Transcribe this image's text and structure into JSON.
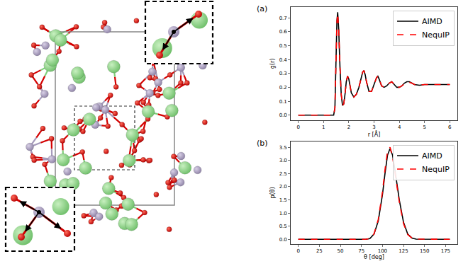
{
  "chart_data": [
    {
      "type": "line",
      "title": "(a)",
      "x_label": "r [Å]",
      "y_label": "g(r)",
      "x": [
        0,
        1.3,
        1.4,
        1.45,
        1.5,
        1.53,
        1.56,
        1.6,
        1.65,
        1.7,
        1.75,
        1.8,
        1.85,
        1.9,
        1.95,
        2.0,
        2.05,
        2.1,
        2.2,
        2.3,
        2.4,
        2.5,
        2.55,
        2.6,
        2.65,
        2.7,
        2.8,
        2.9,
        3.0,
        3.1,
        3.15,
        3.2,
        3.3,
        3.4,
        3.5,
        3.6,
        3.7,
        3.8,
        3.9,
        4.0,
        4.1,
        4.2,
        4.3,
        4.4,
        4.5,
        4.6,
        4.8,
        5.0,
        5.2,
        5.5,
        6.0
      ],
      "series": [
        {
          "name": "AIMD",
          "color": "#000000",
          "line_style": "solid",
          "values": [
            0,
            0,
            0.0,
            0.05,
            0.42,
            0.68,
            0.74,
            0.62,
            0.35,
            0.15,
            0.07,
            0.08,
            0.15,
            0.24,
            0.28,
            0.26,
            0.21,
            0.16,
            0.13,
            0.15,
            0.2,
            0.28,
            0.31,
            0.32,
            0.29,
            0.24,
            0.17,
            0.17,
            0.22,
            0.27,
            0.28,
            0.26,
            0.21,
            0.2,
            0.21,
            0.23,
            0.24,
            0.22,
            0.2,
            0.2,
            0.21,
            0.23,
            0.24,
            0.24,
            0.23,
            0.22,
            0.215,
            0.22,
            0.22,
            0.22,
            0.22
          ]
        },
        {
          "name": "NequIP",
          "color": "#ff0000",
          "line_style": "dashed",
          "values": [
            0,
            0,
            0.0,
            0.05,
            0.41,
            0.67,
            0.73,
            0.62,
            0.35,
            0.15,
            0.07,
            0.08,
            0.15,
            0.24,
            0.28,
            0.26,
            0.21,
            0.16,
            0.13,
            0.15,
            0.2,
            0.28,
            0.31,
            0.32,
            0.29,
            0.24,
            0.17,
            0.17,
            0.22,
            0.27,
            0.28,
            0.26,
            0.21,
            0.2,
            0.21,
            0.23,
            0.24,
            0.22,
            0.2,
            0.2,
            0.21,
            0.225,
            0.235,
            0.235,
            0.23,
            0.22,
            0.215,
            0.22,
            0.22,
            0.22,
            0.22
          ]
        }
      ],
      "xlim": [
        -0.3,
        6.3
      ],
      "xticks": [
        0,
        1,
        2,
        3,
        4,
        5,
        6
      ],
      "ylim": [
        -0.037,
        0.777
      ],
      "yticks": [
        {
          "value": 0,
          "label": "0.0"
        },
        0.1,
        0.2,
        0.3,
        0.4,
        0.5,
        0.6,
        0.7
      ],
      "legend": "upper right",
      "grid": false
    },
    {
      "type": "line",
      "title": "(b)",
      "x_label": "θ [deg]",
      "y_label": "p(θ)",
      "x": [
        0,
        80,
        85,
        90,
        95,
        100,
        103,
        106,
        109,
        112,
        115,
        120,
        125,
        130,
        135,
        140,
        180
      ],
      "series": [
        {
          "name": "AIMD",
          "color": "#000000",
          "line_style": "solid",
          "values": [
            0,
            0,
            0.03,
            0.2,
            0.7,
            1.7,
            2.5,
            3.2,
            3.45,
            3.2,
            2.6,
            1.5,
            0.65,
            0.2,
            0.05,
            0.01,
            0
          ]
        },
        {
          "name": "NequIP",
          "color": "#ff0000",
          "line_style": "dashed",
          "values": [
            0,
            0,
            0.03,
            0.21,
            0.75,
            1.8,
            2.65,
            3.35,
            3.5,
            3.15,
            2.5,
            1.42,
            0.6,
            0.18,
            0.05,
            0.01,
            0
          ]
        }
      ],
      "xlim": [
        -9,
        189
      ],
      "xticks": [
        0,
        25,
        50,
        75,
        100,
        125,
        150,
        175
      ],
      "ylim": [
        -0.18,
        3.72
      ],
      "yticks": [
        {
          "value": 0,
          "label": "0.0"
        },
        0.5,
        {
          "value": 1,
          "label": "1.0"
        },
        1.5,
        {
          "value": 2,
          "label": "2.0"
        },
        2.5,
        {
          "value": 3,
          "label": "3.0"
        },
        3.5
      ],
      "legend": "upper right",
      "grid": false
    }
  ]
}
